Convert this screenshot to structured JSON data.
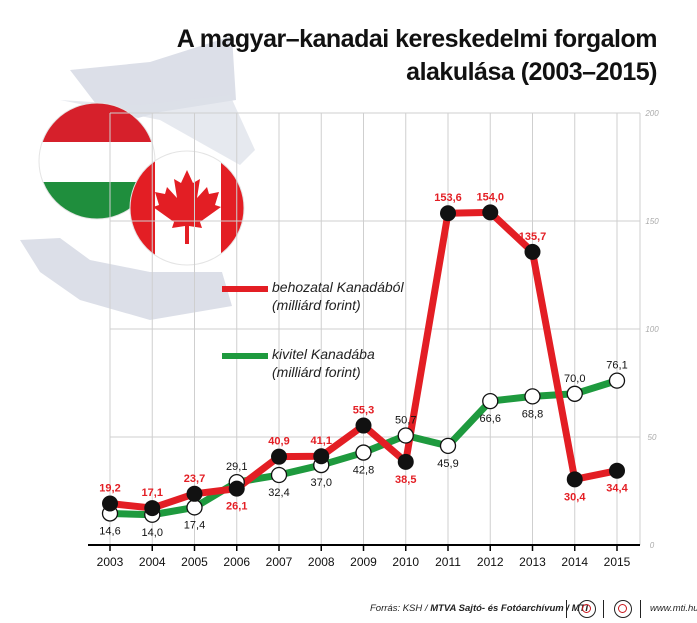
{
  "title_line1": "A magyar–kanadai kereskedelmi forgalom",
  "title_line2": "alakulása (2003–2015)",
  "legend": {
    "import_label": "behozatal Kanadából",
    "import_unit": "(milliárd forint)",
    "export_label": "kivitel Kanadába",
    "export_unit": "(milliárd forint)"
  },
  "footer": {
    "source_prefix": "Forrás: KSH / ",
    "source_bold": "MTVA Sajtó- és Fotóarchívum / MTI",
    "website": "www.mti.hu"
  },
  "colors": {
    "import": "#e31e24",
    "export": "#1e9a3e",
    "axis": "#000000",
    "grid": "#cfcfcf",
    "tick_text": "#aaaaaa"
  },
  "chart_data": {
    "type": "line",
    "x": [
      "2003",
      "2004",
      "2005",
      "2006",
      "2007",
      "2008",
      "2009",
      "2010",
      "2011",
      "2012",
      "2013",
      "2014",
      "2015"
    ],
    "y_ticks": [
      "0",
      "50",
      "100",
      "150",
      "200"
    ],
    "ylim": [
      0,
      200
    ],
    "grid": true,
    "series": [
      {
        "name": "behozatal Kanadából",
        "unit": "(milliárd forint)",
        "values": [
          19.2,
          17.1,
          23.7,
          26.1,
          40.9,
          41.1,
          55.3,
          38.5,
          153.6,
          154.0,
          135.7,
          30.4,
          34.4
        ],
        "labels": [
          "19,2",
          "17,1",
          "23,7",
          "26,1",
          "40,9",
          "41,1",
          "55,3",
          "38,5",
          "153,6",
          "154,0",
          "135,7",
          "30,4",
          "34,4"
        ]
      },
      {
        "name": "kivitel Kanadába",
        "unit": "(milliárd forint)",
        "values": [
          14.6,
          14.0,
          17.4,
          29.1,
          32.4,
          37.0,
          42.8,
          50.7,
          45.9,
          66.6,
          68.8,
          70.0,
          76.1
        ],
        "labels": [
          "14,6",
          "14,0",
          "17,4",
          "29,1",
          "32,4",
          "37,0",
          "42,8",
          "50,7",
          "45,9",
          "66,6",
          "68,8",
          "70,0",
          "76,1"
        ]
      }
    ]
  }
}
